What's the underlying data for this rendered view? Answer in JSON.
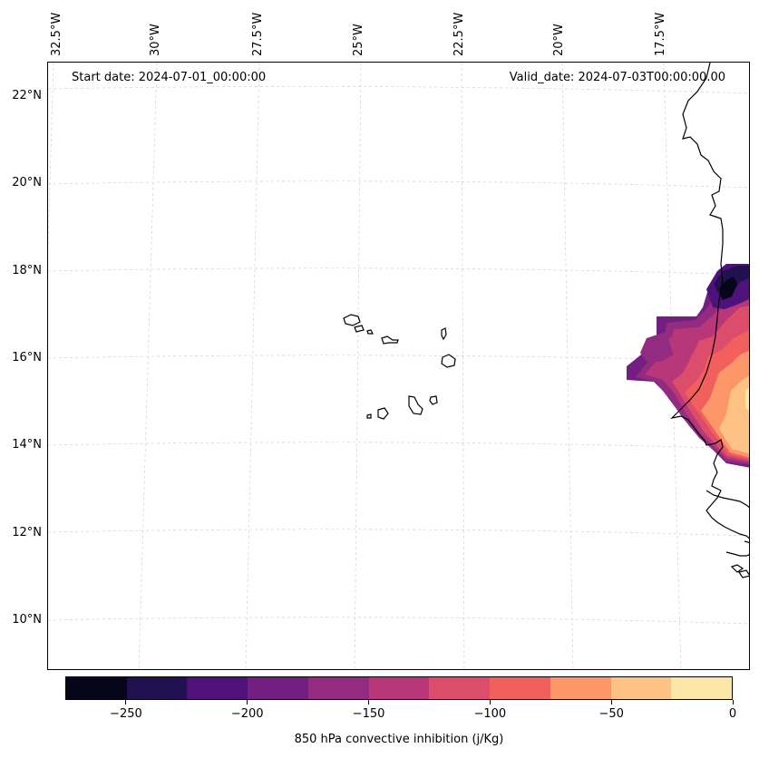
{
  "header": {
    "start_date": "Start date: 2024-07-01_00:00:00",
    "valid_date": "Valid_date: 2024-07-03T00:00:00.00"
  },
  "map": {
    "lon_labels": [
      "32.5°W",
      "30°W",
      "27.5°W",
      "25°W",
      "22.5°W",
      "20°W",
      "17.5°W"
    ],
    "lat_labels": [
      "22°N",
      "20°N",
      "18°N",
      "16°N",
      "14°N",
      "12°N",
      "10°N"
    ],
    "features": [
      "cape-verde-islands-icon",
      "west-africa-coastline-icon",
      "convective-inhibition-field-icon"
    ]
  },
  "colorbar": {
    "title": "850 hPa convective inhibition (j/Kg)",
    "tick_labels": [
      "−250",
      "−200",
      "−150",
      "−100",
      "−50",
      "0"
    ],
    "colors": [
      "#06051a",
      "#221150",
      "#4f127b",
      "#721f81",
      "#932b80",
      "#b73779",
      "#dc4c6b",
      "#f1605d",
      "#fd9668",
      "#fec287",
      "#fde7a8"
    ]
  }
}
